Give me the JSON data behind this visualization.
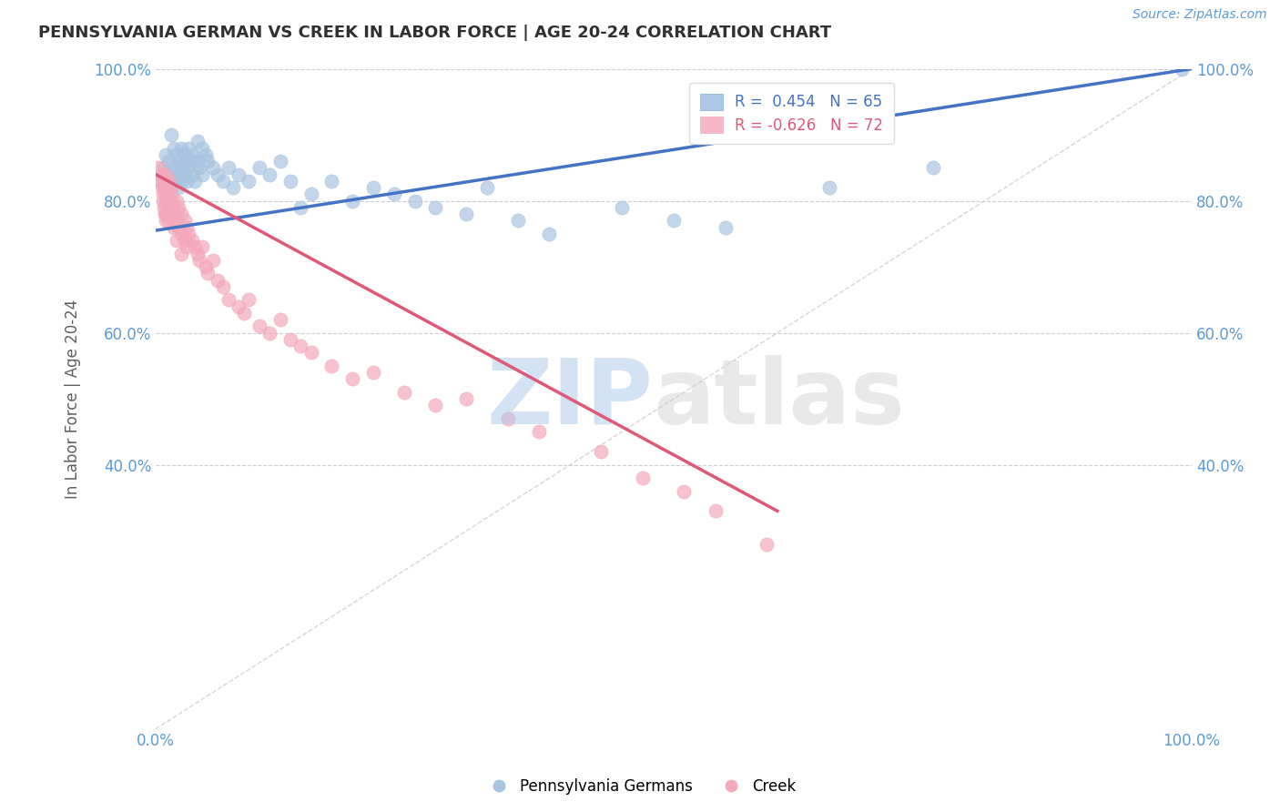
{
  "title": "PENNSYLVANIA GERMAN VS CREEK IN LABOR FORCE | AGE 20-24 CORRELATION CHART",
  "ylabel": "In Labor Force | Age 20-24",
  "source": "Source: ZipAtlas.com",
  "legend_label_blue": "Pennsylvania Germans",
  "legend_label_pink": "Creek",
  "blue_color": "#a8c4e0",
  "pink_color": "#f4a8bc",
  "blue_line_color": "#4472c4",
  "pink_line_color": "#e05878",
  "background_color": "#ffffff",
  "grid_color": "#b0b8c8",
  "title_color": "#303030",
  "blue_scatter": [
    [
      0.005,
      0.83
    ],
    [
      0.008,
      0.85
    ],
    [
      0.01,
      0.87
    ],
    [
      0.01,
      0.8
    ],
    [
      0.012,
      0.86
    ],
    [
      0.015,
      0.9
    ],
    [
      0.015,
      0.84
    ],
    [
      0.015,
      0.82
    ],
    [
      0.018,
      0.88
    ],
    [
      0.018,
      0.85
    ],
    [
      0.018,
      0.83
    ],
    [
      0.02,
      0.87
    ],
    [
      0.02,
      0.84
    ],
    [
      0.022,
      0.86
    ],
    [
      0.022,
      0.82
    ],
    [
      0.025,
      0.88
    ],
    [
      0.025,
      0.85
    ],
    [
      0.025,
      0.83
    ],
    [
      0.028,
      0.87
    ],
    [
      0.028,
      0.84
    ],
    [
      0.03,
      0.86
    ],
    [
      0.03,
      0.83
    ],
    [
      0.032,
      0.88
    ],
    [
      0.032,
      0.85
    ],
    [
      0.035,
      0.87
    ],
    [
      0.035,
      0.84
    ],
    [
      0.038,
      0.86
    ],
    [
      0.038,
      0.83
    ],
    [
      0.04,
      0.89
    ],
    [
      0.04,
      0.86
    ],
    [
      0.042,
      0.85
    ],
    [
      0.045,
      0.88
    ],
    [
      0.045,
      0.84
    ],
    [
      0.048,
      0.87
    ],
    [
      0.05,
      0.86
    ],
    [
      0.055,
      0.85
    ],
    [
      0.06,
      0.84
    ],
    [
      0.065,
      0.83
    ],
    [
      0.07,
      0.85
    ],
    [
      0.075,
      0.82
    ],
    [
      0.08,
      0.84
    ],
    [
      0.09,
      0.83
    ],
    [
      0.1,
      0.85
    ],
    [
      0.11,
      0.84
    ],
    [
      0.12,
      0.86
    ],
    [
      0.13,
      0.83
    ],
    [
      0.14,
      0.79
    ],
    [
      0.15,
      0.81
    ],
    [
      0.17,
      0.83
    ],
    [
      0.19,
      0.8
    ],
    [
      0.21,
      0.82
    ],
    [
      0.23,
      0.81
    ],
    [
      0.25,
      0.8
    ],
    [
      0.27,
      0.79
    ],
    [
      0.3,
      0.78
    ],
    [
      0.32,
      0.82
    ],
    [
      0.35,
      0.77
    ],
    [
      0.38,
      0.75
    ],
    [
      0.45,
      0.79
    ],
    [
      0.5,
      0.77
    ],
    [
      0.55,
      0.76
    ],
    [
      0.65,
      0.82
    ],
    [
      0.75,
      0.85
    ],
    [
      0.99,
      1.0
    ]
  ],
  "pink_scatter": [
    [
      0.003,
      0.85
    ],
    [
      0.005,
      0.84
    ],
    [
      0.005,
      0.83
    ],
    [
      0.006,
      0.82
    ],
    [
      0.007,
      0.81
    ],
    [
      0.007,
      0.8
    ],
    [
      0.008,
      0.83
    ],
    [
      0.008,
      0.79
    ],
    [
      0.009,
      0.82
    ],
    [
      0.009,
      0.78
    ],
    [
      0.01,
      0.84
    ],
    [
      0.01,
      0.81
    ],
    [
      0.01,
      0.78
    ],
    [
      0.01,
      0.77
    ],
    [
      0.012,
      0.83
    ],
    [
      0.012,
      0.8
    ],
    [
      0.012,
      0.77
    ],
    [
      0.014,
      0.82
    ],
    [
      0.014,
      0.79
    ],
    [
      0.015,
      0.81
    ],
    [
      0.015,
      0.78
    ],
    [
      0.016,
      0.8
    ],
    [
      0.017,
      0.79
    ],
    [
      0.018,
      0.78
    ],
    [
      0.018,
      0.76
    ],
    [
      0.02,
      0.8
    ],
    [
      0.02,
      0.77
    ],
    [
      0.02,
      0.74
    ],
    [
      0.022,
      0.79
    ],
    [
      0.022,
      0.76
    ],
    [
      0.025,
      0.78
    ],
    [
      0.025,
      0.75
    ],
    [
      0.025,
      0.72
    ],
    [
      0.028,
      0.77
    ],
    [
      0.028,
      0.74
    ],
    [
      0.03,
      0.76
    ],
    [
      0.03,
      0.73
    ],
    [
      0.032,
      0.75
    ],
    [
      0.035,
      0.74
    ],
    [
      0.038,
      0.73
    ],
    [
      0.04,
      0.72
    ],
    [
      0.042,
      0.71
    ],
    [
      0.045,
      0.73
    ],
    [
      0.048,
      0.7
    ],
    [
      0.05,
      0.69
    ],
    [
      0.055,
      0.71
    ],
    [
      0.06,
      0.68
    ],
    [
      0.065,
      0.67
    ],
    [
      0.07,
      0.65
    ],
    [
      0.08,
      0.64
    ],
    [
      0.085,
      0.63
    ],
    [
      0.09,
      0.65
    ],
    [
      0.1,
      0.61
    ],
    [
      0.11,
      0.6
    ],
    [
      0.12,
      0.62
    ],
    [
      0.13,
      0.59
    ],
    [
      0.14,
      0.58
    ],
    [
      0.15,
      0.57
    ],
    [
      0.17,
      0.55
    ],
    [
      0.19,
      0.53
    ],
    [
      0.21,
      0.54
    ],
    [
      0.24,
      0.51
    ],
    [
      0.27,
      0.49
    ],
    [
      0.3,
      0.5
    ],
    [
      0.34,
      0.47
    ],
    [
      0.37,
      0.45
    ],
    [
      0.43,
      0.42
    ],
    [
      0.47,
      0.38
    ],
    [
      0.51,
      0.36
    ],
    [
      0.54,
      0.33
    ],
    [
      0.59,
      0.28
    ]
  ],
  "blue_line_x": [
    0.0,
    1.0
  ],
  "blue_line_y": [
    0.755,
    1.0
  ],
  "pink_line_x": [
    0.0,
    0.6
  ],
  "pink_line_y": [
    0.84,
    0.33
  ],
  "diag_line_x": [
    0.0,
    1.0
  ],
  "diag_line_y": [
    0.0,
    1.0
  ],
  "xlim": [
    0.0,
    1.0
  ],
  "ylim": [
    0.0,
    1.0
  ],
  "yticks": [
    0.4,
    0.6,
    0.8,
    1.0
  ],
  "ytick_labels": [
    "40.0%",
    "60.0%",
    "80.0%",
    "100.0%"
  ],
  "xticks": [
    0.0,
    1.0
  ],
  "xtick_labels": [
    "0.0%",
    "100.0%"
  ]
}
